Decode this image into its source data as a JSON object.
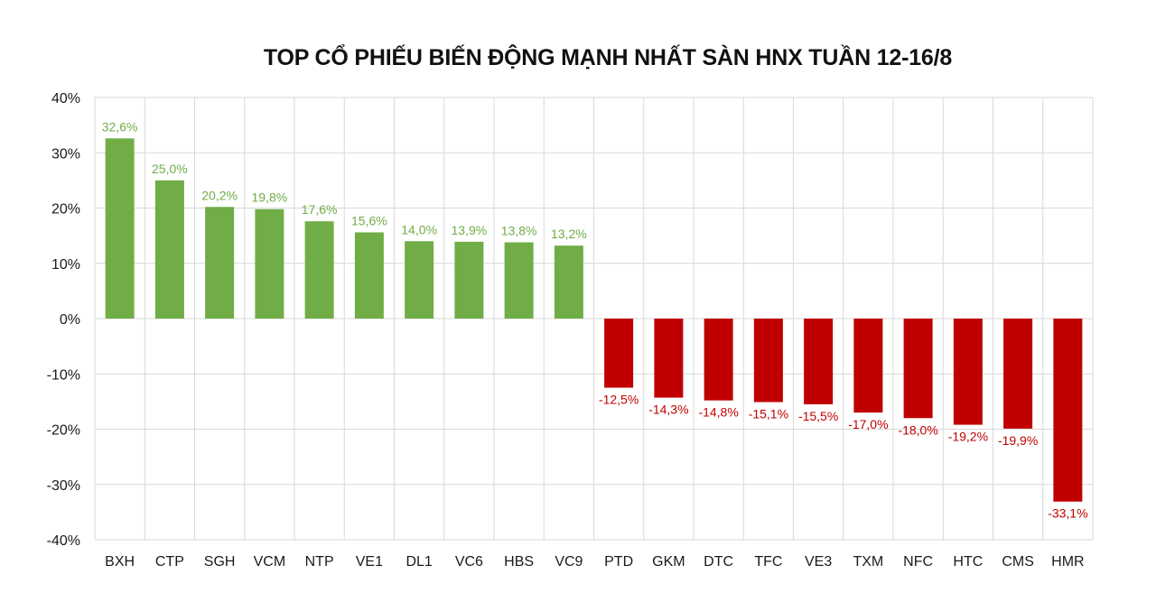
{
  "chart_data": {
    "type": "bar",
    "title": "TOP CỔ PHIẾU BIẾN ĐỘNG MẠNH NHẤT SÀN HNX TUẦN 12-16/8",
    "xlabel": "",
    "ylabel": "",
    "ylim": [
      -40,
      40
    ],
    "yticks": [
      40,
      30,
      20,
      10,
      0,
      -10,
      -20,
      -30,
      -40
    ],
    "ytick_labels": [
      "40%",
      "30%",
      "20%",
      "10%",
      "0%",
      "-10%",
      "-20%",
      "-30%",
      "-40%"
    ],
    "grid": true,
    "legend": "none",
    "categories": [
      "BXH",
      "CTP",
      "SGH",
      "VCM",
      "NTP",
      "VE1",
      "DL1",
      "VC6",
      "HBS",
      "VC9",
      "PTD",
      "GKM",
      "DTC",
      "TFC",
      "VE3",
      "TXM",
      "NFC",
      "HTC",
      "CMS",
      "HMR"
    ],
    "values": [
      32.6,
      25.0,
      20.2,
      19.8,
      17.6,
      15.6,
      14.0,
      13.9,
      13.8,
      13.2,
      -12.5,
      -14.3,
      -14.8,
      -15.1,
      -15.5,
      -17.0,
      -18.0,
      -19.2,
      -19.9,
      -33.1
    ],
    "data_labels": [
      "32,6%",
      "25,0%",
      "20,2%",
      "19,8%",
      "17,6%",
      "15,6%",
      "14,0%",
      "13,9%",
      "13,8%",
      "13,2%",
      "-12,5%",
      "-14,3%",
      "-14,8%",
      "-15,1%",
      "-15,5%",
      "-17,0%",
      "-18,0%",
      "-19,2%",
      "-19,9%",
      "-33,1%"
    ],
    "colors": {
      "positive_bar": "#70ad47",
      "negative_bar": "#c00000",
      "positive_label": "#70ad47",
      "negative_label": "#c00000",
      "grid": "#d9d9d9"
    }
  }
}
